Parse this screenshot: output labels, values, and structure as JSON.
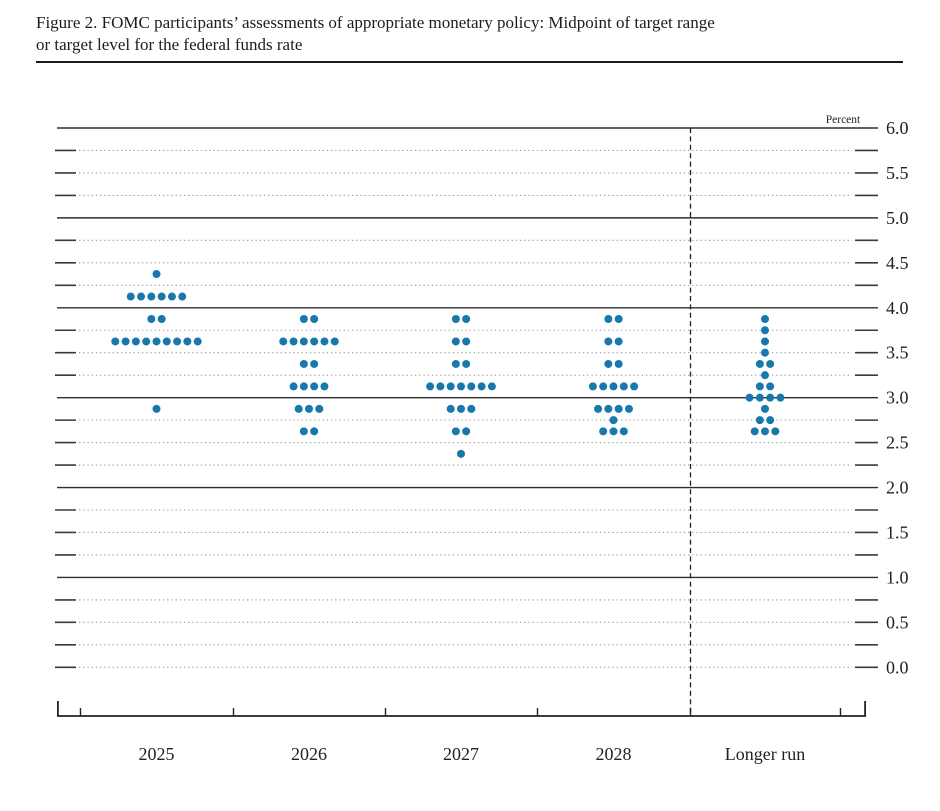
{
  "title": {
    "line1": "Figure 2. FOMC participants’ assessments of appropriate monetary policy: Midpoint of target range",
    "line2": "or target level for the federal funds rate"
  },
  "chart_data": {
    "type": "scatter",
    "subtype": "fomc-dot-plot",
    "title": "Figure 2. FOMC participants’ assessments of appropriate monetary policy: Midpoint of target range or target level for the federal funds rate",
    "unit_label": "Percent",
    "categories": [
      "2025",
      "2026",
      "2027",
      "2028",
      "Longer run"
    ],
    "y_axis": {
      "min": 0.0,
      "max": 6.0,
      "label_step": 0.5,
      "grid_step": 0.25,
      "tick_labels": [
        "6.0",
        "5.5",
        "5.0",
        "4.5",
        "4.0",
        "3.5",
        "3.0",
        "2.5",
        "2.0",
        "1.5",
        "1.0",
        "0.5",
        "0.0"
      ],
      "solid_line_values": [
        6.0,
        5.0,
        4.0,
        3.0,
        2.0,
        1.0
      ],
      "grid_on": true
    },
    "legend": "none",
    "dot_color": "#1878ab",
    "participants_per_column": 19,
    "series": [
      {
        "category": "2025",
        "dots": [
          {
            "value": 4.375,
            "count": 1
          },
          {
            "value": 4.125,
            "count": 6
          },
          {
            "value": 3.875,
            "count": 2
          },
          {
            "value": 3.625,
            "count": 9
          },
          {
            "value": 2.875,
            "count": 1
          }
        ]
      },
      {
        "category": "2026",
        "dots": [
          {
            "value": 3.875,
            "count": 2
          },
          {
            "value": 3.625,
            "count": 6
          },
          {
            "value": 3.375,
            "count": 2
          },
          {
            "value": 3.125,
            "count": 4
          },
          {
            "value": 2.875,
            "count": 3
          },
          {
            "value": 2.625,
            "count": 2
          }
        ]
      },
      {
        "category": "2027",
        "dots": [
          {
            "value": 3.875,
            "count": 2
          },
          {
            "value": 3.625,
            "count": 2
          },
          {
            "value": 3.375,
            "count": 2
          },
          {
            "value": 3.125,
            "count": 7
          },
          {
            "value": 2.875,
            "count": 3
          },
          {
            "value": 2.625,
            "count": 2
          },
          {
            "value": 2.375,
            "count": 1
          }
        ]
      },
      {
        "category": "2028",
        "dots": [
          {
            "value": 3.875,
            "count": 2
          },
          {
            "value": 3.625,
            "count": 2
          },
          {
            "value": 3.375,
            "count": 2
          },
          {
            "value": 3.125,
            "count": 5
          },
          {
            "value": 2.875,
            "count": 4
          },
          {
            "value": 2.75,
            "count": 1
          },
          {
            "value": 2.625,
            "count": 3
          }
        ]
      },
      {
        "category": "Longer run",
        "dots": [
          {
            "value": 3.875,
            "count": 1
          },
          {
            "value": 3.75,
            "count": 1
          },
          {
            "value": 3.625,
            "count": 1
          },
          {
            "value": 3.5,
            "count": 1
          },
          {
            "value": 3.375,
            "count": 2
          },
          {
            "value": 3.25,
            "count": 1
          },
          {
            "value": 3.125,
            "count": 2
          },
          {
            "value": 3.0,
            "count": 4
          },
          {
            "value": 2.875,
            "count": 1
          },
          {
            "value": 2.75,
            "count": 2
          },
          {
            "value": 2.625,
            "count": 3
          }
        ]
      }
    ],
    "separator": {
      "type": "dashed-vertical-line",
      "between": [
        "2028",
        "Longer run"
      ]
    }
  }
}
